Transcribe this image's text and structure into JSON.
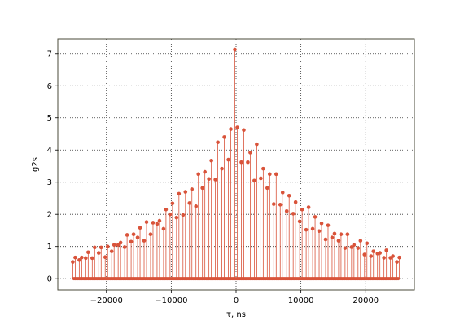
{
  "chart_data": {
    "type": "stem",
    "title": "",
    "xlabel": "τ, ns",
    "ylabel": "g2s",
    "xlim": [
      -27500,
      27500
    ],
    "ylim": [
      -0.35,
      7.45
    ],
    "xticks": [
      -20000,
      -10000,
      0,
      10000,
      20000
    ],
    "xtick_labels": [
      "−20000",
      "−10000",
      "0",
      "10000",
      "20000"
    ],
    "yticks": [
      0,
      1,
      2,
      3,
      4,
      5,
      6,
      7
    ],
    "ytick_labels": [
      "0",
      "1",
      "2",
      "3",
      "4",
      "5",
      "6",
      "7"
    ],
    "grid": true,
    "colors": {
      "series": "#d9533a",
      "frame": "#4a4a3a",
      "grid": "#333333",
      "background": "#ffffff"
    },
    "peaks": {
      "x": [
        -25000,
        -24000,
        -23000,
        -22000,
        -21000,
        -20000,
        -19000,
        -18000,
        -17000,
        -16000,
        -15000,
        -14000,
        -13000,
        -12000,
        -11000,
        -10000,
        -9000,
        -8000,
        -7000,
        -6000,
        -5000,
        -4000,
        -3000,
        -2000,
        -1000,
        0,
        1000,
        2000,
        3000,
        4000,
        5000,
        6000,
        7000,
        8000,
        9000,
        10000,
        11000,
        12000,
        13000,
        14000,
        15000,
        16000,
        17000,
        18000,
        19000,
        20000,
        21000,
        22000,
        23000,
        24000,
        25000
      ],
      "y1": [
        0.52,
        0.58,
        0.64,
        0.64,
        0.8,
        0.67,
        0.85,
        1.05,
        0.98,
        1.15,
        1.28,
        1.18,
        1.38,
        1.7,
        1.55,
        2.0,
        1.9,
        1.98,
        2.35,
        2.25,
        2.82,
        3.1,
        3.08,
        3.42,
        3.7,
        7.12,
        3.62,
        3.62,
        3.05,
        3.12,
        2.82,
        2.32,
        2.3,
        2.1,
        2.02,
        1.78,
        1.52,
        1.55,
        1.48,
        1.22,
        1.28,
        1.18,
        0.95,
        0.98,
        0.95,
        0.75,
        0.7,
        0.78,
        0.65,
        0.65,
        0.52
      ],
      "y2": [
        0.66,
        0.66,
        0.82,
        0.97,
        0.97,
        1.0,
        1.05,
        1.12,
        1.36,
        1.38,
        1.58,
        1.76,
        1.74,
        1.8,
        2.15,
        2.34,
        2.64,
        2.7,
        2.78,
        3.25,
        3.32,
        3.67,
        4.24,
        4.4,
        4.65,
        4.7,
        4.62,
        3.92,
        4.18,
        3.42,
        3.25,
        3.25,
        2.68,
        2.58,
        2.38,
        2.15,
        2.22,
        1.92,
        1.72,
        1.66,
        1.4,
        1.38,
        1.38,
        1.05,
        1.18,
        1.1,
        0.85,
        0.8,
        0.88,
        0.7,
        0.66
      ]
    },
    "baseline": {
      "step": 200,
      "value": 0
    }
  }
}
